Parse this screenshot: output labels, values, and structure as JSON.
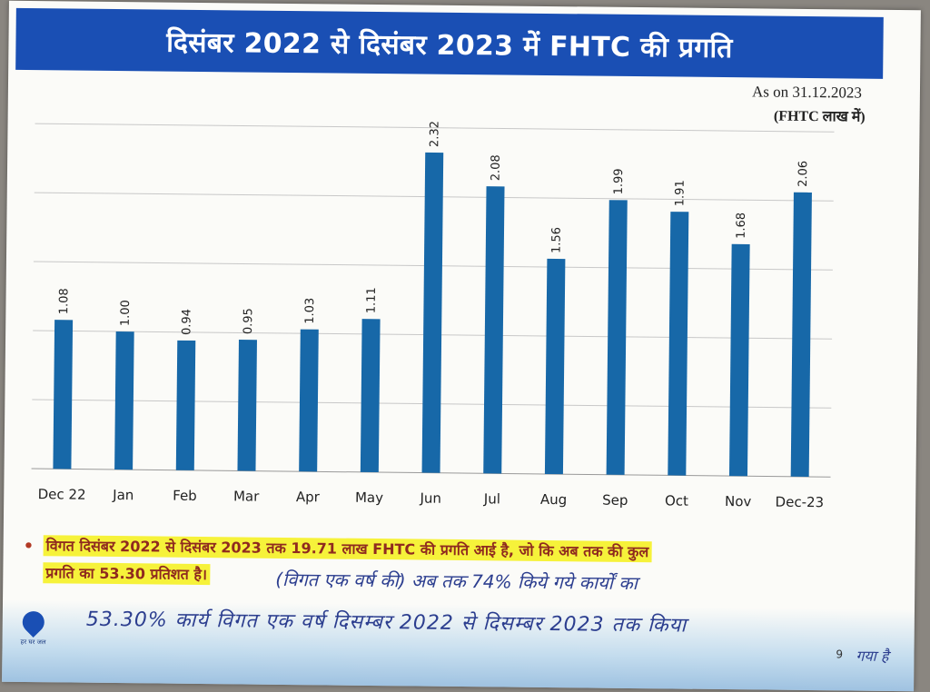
{
  "title": "दिसंबर 2022 से दिसंबर 2023 में FHTC की प्रगति",
  "as_on": "As on 31.12.2023",
  "unit": "(FHTC लाख में)",
  "note": {
    "bullet": "•",
    "line1": "विगत दिसंबर 2022 से दिसंबर 2023 तक 19.71 लाख FHTC की प्रगति आई है, जो कि अब तक की कुल",
    "line2": "प्रगति का 53.30 प्रतिशत है।"
  },
  "handwritten": {
    "line1": "(विगत एक वर्ष की) अब तक 74% किये गये कार्यों का",
    "line2": "53.30% कार्य विगत एक वर्ष दिसम्बर 2022 से दिसम्बर 2023 तक किया",
    "line3": "गया है"
  },
  "logo_text": "हर घर जल",
  "page_number": "9",
  "colors": {
    "bar": "#1768a8",
    "title_bar": "#1a4fb4",
    "highlight": "#f6f23a",
    "note_text": "#8f2a1f"
  },
  "chart_data": {
    "type": "bar",
    "categories": [
      "Dec 22",
      "Jan",
      "Feb",
      "Mar",
      "Apr",
      "May",
      "Jun",
      "Jul",
      "Aug",
      "Sep",
      "Oct",
      "Nov",
      "Dec-23"
    ],
    "values": [
      1.08,
      1.0,
      0.94,
      0.95,
      1.03,
      1.11,
      2.32,
      2.08,
      1.56,
      1.99,
      1.91,
      1.68,
      2.06
    ],
    "data_labels": [
      "1.08",
      "1.00",
      "0.94",
      "0.95",
      "1.03",
      "1.11",
      "2.32",
      "2.08",
      "1.56",
      "1.99",
      "1.91",
      "1.68",
      "2.06"
    ],
    "ylim": [
      0,
      2.5
    ],
    "grid": true,
    "title": "",
    "xlabel": "",
    "ylabel": ""
  }
}
